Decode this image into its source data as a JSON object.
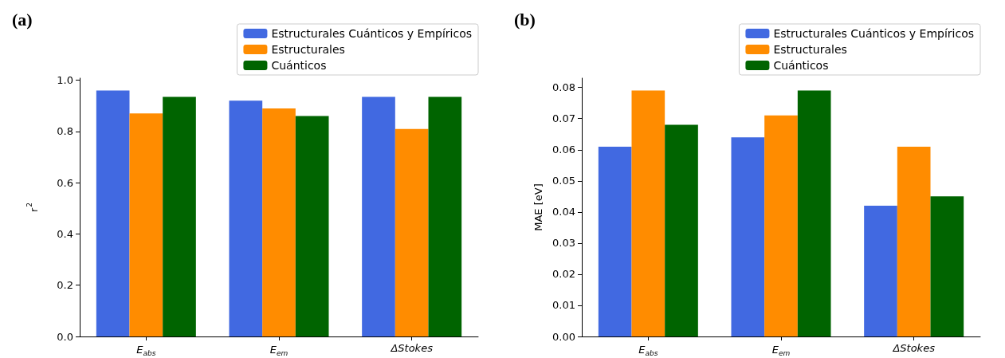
{
  "chart_data": [
    {
      "type": "bar",
      "title": "(a)",
      "ylabel": "r$^{2}$",
      "categories": [
        "E$_{abs}$",
        "E$_{em}$",
        "ΔStokes"
      ],
      "series": [
        {
          "name": "Estructurales Cuánticos y Empíricos",
          "color": "#4169e1",
          "values": [
            0.96,
            0.92,
            0.935
          ]
        },
        {
          "name": "Estructurales",
          "color": "#ff8c00",
          "values": [
            0.87,
            0.89,
            0.81
          ]
        },
        {
          "name": "Cuánticos",
          "color": "#006400",
          "values": [
            0.935,
            0.86,
            0.935
          ]
        }
      ],
      "ylim": [
        0,
        1.008
      ],
      "yticks": [
        {
          "value": 0,
          "label": "0.0"
        },
        {
          "value": 0.2,
          "label": "0.2"
        },
        {
          "value": 0.4,
          "label": "0.4"
        },
        {
          "value": 0.6,
          "label": "0.6"
        },
        {
          "value": 0.8,
          "label": "0.8"
        },
        {
          "value": 1,
          "label": "1.0"
        }
      ],
      "grid": false,
      "legend": "top right"
    },
    {
      "type": "bar",
      "title": "(b)",
      "ylabel": "MAE [eV]",
      "categories": [
        "E$_{abs}$",
        "E$_{em}$",
        "ΔStokes"
      ],
      "series": [
        {
          "name": "Estructurales Cuánticos y Empíricos",
          "color": "#4169e1",
          "values": [
            0.061,
            0.064,
            0.042
          ]
        },
        {
          "name": "Estructurales",
          "color": "#ff8c00",
          "values": [
            0.079,
            0.071,
            0.061
          ]
        },
        {
          "name": "Cuánticos",
          "color": "#006400",
          "values": [
            0.068,
            0.079,
            0.045
          ]
        }
      ],
      "ylim": [
        0,
        0.083
      ],
      "yticks": [
        {
          "value": 0,
          "label": "0.00"
        },
        {
          "value": 0.01,
          "label": "0.01"
        },
        {
          "value": 0.02,
          "label": "0.02"
        },
        {
          "value": 0.03,
          "label": "0.03"
        },
        {
          "value": 0.04,
          "label": "0.04"
        },
        {
          "value": 0.05,
          "label": "0.05"
        },
        {
          "value": 0.06,
          "label": "0.06"
        },
        {
          "value": 0.07,
          "label": "0.07"
        },
        {
          "value": 0.08,
          "label": "0.08"
        }
      ],
      "grid": false,
      "legend": "top right"
    }
  ]
}
